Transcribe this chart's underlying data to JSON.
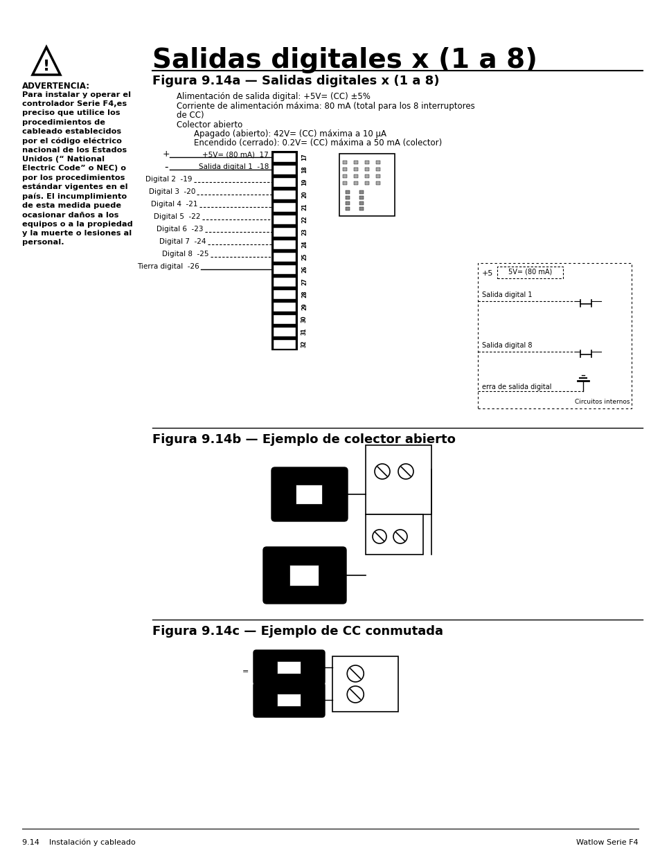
{
  "page_title": "Salidas digitales x (1 a 8)",
  "fig_a_title": "Figura 9.14a — Salidas digitales x (1 a 8)",
  "fig_b_title": "Figura 9.14b — Ejemplo de colector abierto",
  "fig_c_title": "Figura 9.14c — Ejemplo de CC conmutada",
  "warning_title": "ADVERTENCIA:",
  "warning_text": "Para instalar y operar el\ncontrolador Serie F4,es\npreciso que utilice los\nprocedimientos de\ncableado establecidos\npor el código eléctrico\nnacional de los Estados\nUnidos (“ National\nElectric Code” o NEC) o\npor los procedimientos\nestándar vigentes en el\npaís. El incumplimiento\nde esta medida puede\nocasionar daños a los\nequipos o a la propiedad\ny la muerte o lesiones al\npersonal.",
  "spec_line1": "Alimentación de salida digital: +5V= (CC) ±5%",
  "spec_line2": "Corriente de alimentación máxima: 80 mA (total para los 8 interruptores",
  "spec_line2b": "de CC)",
  "spec_line3": "Colector abierto",
  "spec_line4": "Apagado (abierto): 42V= (CC) máxima a 10 μA",
  "spec_line5": "Encendido (cerrado): 0.2V= (CC) máxima a 50 mA (colector)",
  "footer_left": "9.14    Instalación y cableado",
  "footer_right": "Watlow Serie F4",
  "bg_color": "#ffffff"
}
